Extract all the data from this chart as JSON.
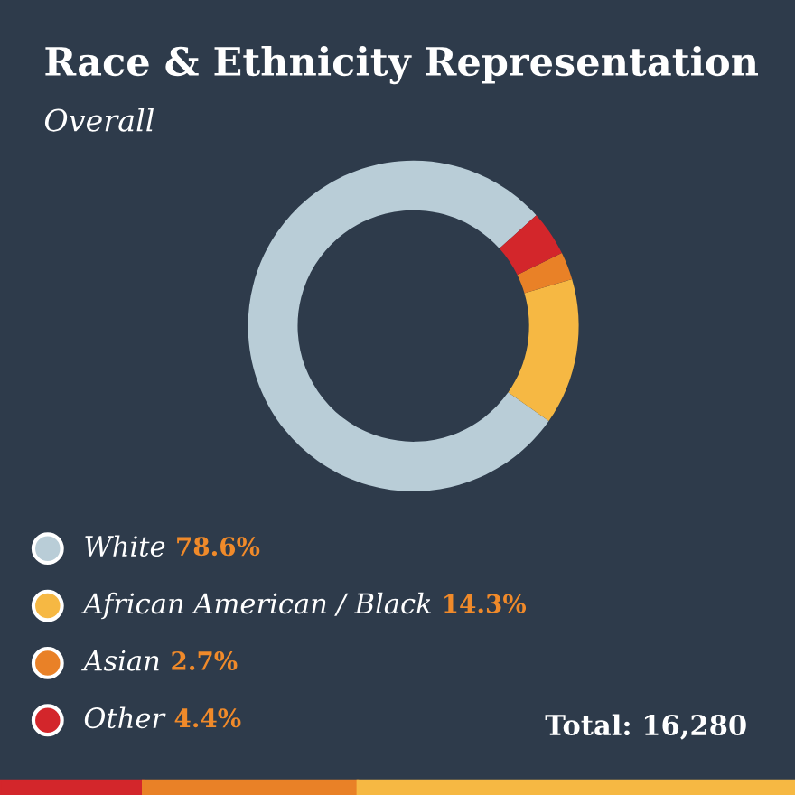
{
  "chart_data": {
    "type": "donut",
    "title": "Race & Ethnicity Representation",
    "subtitle": "Overall",
    "categories": [
      "White",
      "African American / Black",
      "Asian",
      "Other"
    ],
    "values": [
      78.6,
      14.3,
      2.7,
      4.4
    ],
    "value_labels": [
      "78.6%",
      "14.3%",
      "2.7%",
      "4.4%"
    ],
    "colors": [
      "#b9cdd7",
      "#f6b843",
      "#e98127",
      "#d3262b"
    ],
    "legend": "bottom left",
    "annotations": [
      "Total: 16,280"
    ]
  }
}
